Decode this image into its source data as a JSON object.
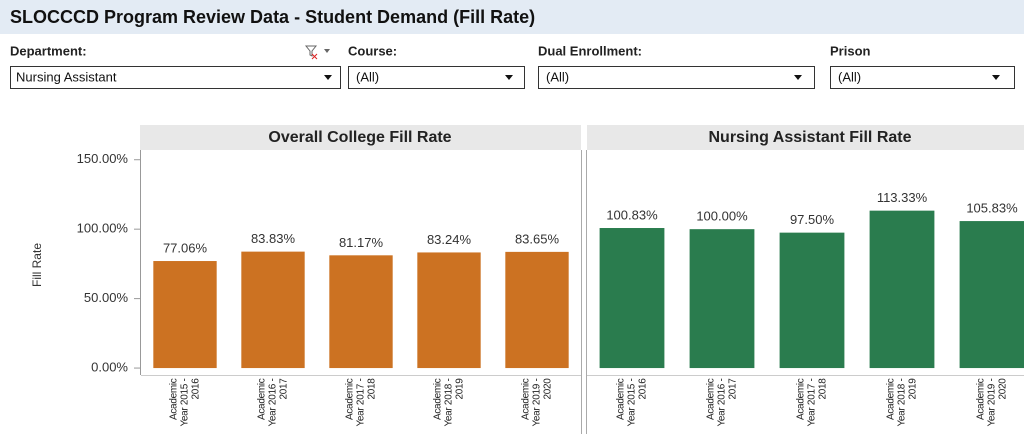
{
  "header": {
    "title": "SLOCCCD Program Review Data - Student Demand (Fill Rate)"
  },
  "filters": [
    {
      "label": "Department:",
      "value": "Nursing Assistant"
    },
    {
      "label": "Course:",
      "value": "(All)"
    },
    {
      "label": "Dual Enrollment:",
      "value": "(All)"
    },
    {
      "label": "Prison",
      "value": "(All)"
    }
  ],
  "chart_data": [
    {
      "type": "bar",
      "title": "Overall College Fill Rate",
      "y_label": "Fill Rate",
      "color": "#cc7222",
      "categories": [
        "Academic Year 2015 - 2016",
        "Academic Year 2016 - 2017",
        "Academic Year 2017 - 2018",
        "Academic Year 2018 - 2019",
        "Academic Year 2019 - 2020"
      ],
      "values": [
        77.06,
        83.83,
        81.17,
        83.24,
        83.65
      ],
      "value_labels": [
        "77.06%",
        "83.83%",
        "81.17%",
        "83.24%",
        "83.65%"
      ],
      "ylim": [
        -5,
        157
      ],
      "yticks": [
        {
          "value": 0,
          "label": "0.00%"
        },
        {
          "value": 50,
          "label": "50.00%"
        },
        {
          "value": 100,
          "label": "100.00%"
        },
        {
          "value": 150,
          "label": "150.00%"
        }
      ]
    },
    {
      "type": "bar",
      "title": "Nursing Assistant Fill Rate",
      "color": "#2a7c4e",
      "categories": [
        "Academic Year 2015 - 2016",
        "Academic Year 2016 - 2017",
        "Academic Year 2017 - 2018",
        "Academic Year 2018 - 2019",
        "Academic Year 2019 - 2020"
      ],
      "values": [
        100.83,
        100.0,
        97.5,
        113.33,
        105.83
      ],
      "value_labels": [
        "100.83%",
        "100.00%",
        "97.50%",
        "113.33%",
        "105.83%"
      ],
      "ylim": [
        -5,
        157
      ]
    }
  ]
}
